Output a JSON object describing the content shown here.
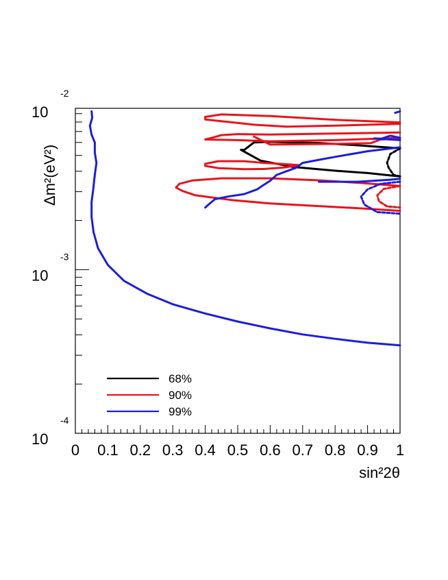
{
  "chart_data": {
    "type": "line",
    "title": "",
    "xlabel": "sin²2θ",
    "ylabel": "Δm²(eV²)",
    "x_axis": {
      "range": [
        0,
        1
      ],
      "tick_labels": [
        "0",
        "0.1",
        "0.2",
        "0.3",
        "0.4",
        "0.5",
        "0.6",
        "0.7",
        "0.8",
        "0.9",
        "1"
      ]
    },
    "y_axis": {
      "scale": "log",
      "range": [
        0.0001,
        0.0097
      ],
      "tick_labels": [
        {
          "base": "10",
          "exp": "-2",
          "value": 0.01
        },
        {
          "base": "10",
          "exp": "-3",
          "value": 0.001
        },
        {
          "base": "10",
          "exp": "-4",
          "value": 0.0001
        }
      ]
    },
    "grid": false,
    "legend": {
      "placement": "bottom-left",
      "entries": [
        {
          "label": "68%",
          "color": "#000000"
        },
        {
          "label": "90%",
          "color": "#e8141c"
        },
        {
          "label": "99%",
          "color": "#1c1ce0"
        }
      ]
    },
    "series": [
      {
        "name": "68%",
        "color": "#000000",
        "contours": [
          {
            "style": "solid",
            "points": [
              [
                1.0,
                0.00552
              ],
              [
                0.86,
                0.00578
              ],
              [
                0.75,
                0.00595
              ],
              [
                0.6,
                0.00605
              ],
              [
                0.55,
                0.006
              ],
              [
                0.52,
                0.0054
              ],
              [
                0.51,
                0.00541
              ],
              [
                0.57,
                0.00465
              ],
              [
                0.67,
                0.00425
              ],
              [
                0.8,
                0.00403
              ],
              [
                0.9,
                0.0039
              ],
              [
                0.97,
                0.00377
              ],
              [
                1.0,
                0.00372
              ]
            ]
          },
          {
            "style": "dashed",
            "points": [
              [
                1.0,
                0.00552
              ],
              [
                0.97,
                0.0051
              ],
              [
                0.96,
                0.0045
              ],
              [
                0.965,
                0.0042
              ],
              [
                0.98,
                0.0038
              ],
              [
                1.0,
                0.00372
              ]
            ]
          }
        ]
      },
      {
        "name": "90%",
        "color": "#e8141c",
        "contours": [
          {
            "style": "solid",
            "points": [
              [
                1.0,
                0.00795
              ],
              [
                0.8,
                0.00825
              ],
              [
                0.6,
                0.0087
              ],
              [
                0.45,
                0.0089
              ],
              [
                0.4,
                0.0086
              ],
              [
                0.4,
                0.0083
              ],
              [
                0.55,
                0.0077
              ],
              [
                0.65,
                0.0075
              ],
              [
                0.8,
                0.0076
              ],
              [
                1.0,
                0.0078
              ]
            ]
          },
          {
            "style": "solid",
            "points": [
              [
                1.0,
                0.0069
              ],
              [
                0.8,
                0.0068
              ],
              [
                0.6,
                0.0067
              ],
              [
                0.5,
                0.00675
              ],
              [
                0.45,
                0.00665
              ],
              [
                0.42,
                0.0064
              ],
              [
                0.4,
                0.00625
              ],
              [
                0.5,
                0.0062
              ],
              [
                0.6,
                0.0061
              ],
              [
                0.8,
                0.0062
              ],
              [
                1.0,
                0.0064
              ]
            ]
          },
          {
            "style": "solid",
            "points": [
              [
                0.55,
                0.00652
              ],
              [
                0.6,
                0.00582
              ],
              [
                0.7,
                0.00585
              ],
              [
                0.8,
                0.00588
              ],
              [
                0.91,
                0.00594
              ],
              [
                0.94,
                0.00625
              ],
              [
                1.0,
                0.00635
              ]
            ]
          },
          {
            "style": "solid",
            "points": [
              [
                0.69,
                0.00436
              ],
              [
                0.64,
                0.00443
              ],
              [
                0.58,
                0.0045
              ],
              [
                0.52,
                0.00461
              ],
              [
                0.44,
                0.00461
              ],
              [
                0.4,
                0.00444
              ],
              [
                0.4,
                0.00431
              ],
              [
                0.44,
                0.00418
              ],
              [
                0.52,
                0.00412
              ],
              [
                0.58,
                0.00413
              ],
              [
                0.64,
                0.00421
              ],
              [
                0.69,
                0.00436
              ]
            ]
          },
          {
            "style": "solid",
            "points": [
              [
                1.0,
                0.00325
              ],
              [
                0.88,
                0.00339
              ],
              [
                0.75,
                0.00352
              ],
              [
                0.6,
                0.00362
              ],
              [
                0.45,
                0.00362
              ],
              [
                0.36,
                0.00351
              ],
              [
                0.32,
                0.00335
              ],
              [
                0.31,
                0.00318
              ],
              [
                0.33,
                0.00303
              ],
              [
                0.37,
                0.00285
              ],
              [
                0.48,
                0.00267
              ],
              [
                0.6,
                0.00254
              ],
              [
                0.75,
                0.00245
              ],
              [
                0.9,
                0.00236
              ],
              [
                1.0,
                0.00229
              ]
            ]
          },
          {
            "style": "dashed",
            "points": [
              [
                1.0,
                0.00325
              ],
              [
                0.95,
                0.00312
              ],
              [
                0.93,
                0.00285
              ],
              [
                0.935,
                0.00262
              ],
              [
                0.96,
                0.00244
              ],
              [
                1.0,
                0.0024
              ]
            ]
          }
        ]
      },
      {
        "name": "99%",
        "color": "#1c1ce0",
        "contours": [
          {
            "style": "solid",
            "points": [
              [
                0.05,
                0.0093
              ],
              [
                0.052,
                0.0085
              ],
              [
                0.045,
                0.0076
              ],
              [
                0.05,
                0.0067
              ],
              [
                0.06,
                0.006
              ],
              [
                0.06,
                0.0052
              ],
              [
                0.065,
                0.0045
              ],
              [
                0.06,
                0.0038
              ],
              [
                0.055,
                0.0031
              ],
              [
                0.05,
                0.0026
              ],
              [
                0.05,
                0.0021
              ],
              [
                0.056,
                0.0017
              ],
              [
                0.07,
                0.00135
              ],
              [
                0.1,
                0.00107
              ],
              [
                0.15,
                0.000855
              ],
              [
                0.22,
                0.000715
              ],
              [
                0.3,
                0.000615
              ],
              [
                0.4,
                0.00054
              ],
              [
                0.5,
                0.000482
              ],
              [
                0.6,
                0.000438
              ],
              [
                0.7,
                0.000402
              ],
              [
                0.8,
                0.000378
              ],
              [
                0.9,
                0.000358
              ],
              [
                1.0,
                0.000345
              ]
            ]
          },
          {
            "style": "solid",
            "points": [
              [
                1.0,
                0.0056
              ],
              [
                0.9,
                0.0053
              ],
              [
                0.8,
                0.0049
              ],
              [
                0.75,
                0.0047
              ],
              [
                0.7,
                0.0045
              ],
              [
                0.68,
                0.0042
              ],
              [
                0.65,
                0.004
              ],
              [
                0.62,
                0.0038
              ],
              [
                0.6,
                0.0035
              ],
              [
                0.58,
                0.0033
              ],
              [
                0.56,
                0.0031
              ],
              [
                0.52,
                0.0029
              ],
              [
                0.47,
                0.0028
              ],
              [
                0.43,
                0.0027
              ],
              [
                0.41,
                0.0025
              ],
              [
                0.4,
                0.0024
              ]
            ]
          },
          {
            "style": "solid",
            "points": [
              [
                1.0,
                0.0064
              ],
              [
                0.97,
                0.0066
              ],
              [
                0.94,
                0.0063
              ],
              [
                0.92,
                0.00635
              ],
              [
                1.0,
                0.0062
              ]
            ]
          },
          {
            "style": "solid",
            "points": [
              [
                1.0,
                0.0093
              ],
              [
                0.985,
                0.0091
              ]
            ]
          },
          {
            "style": "solid",
            "points": [
              [
                1.0,
                0.0036
              ],
              [
                0.97,
                0.00355
              ],
              [
                0.92,
                0.0035
              ],
              [
                0.87,
                0.00345
              ],
              [
                0.81,
                0.00345
              ],
              [
                0.75,
                0.00345
              ]
            ]
          },
          {
            "style": "dashed",
            "points": [
              [
                1.0,
                0.00345
              ],
              [
                0.94,
                0.00335
              ],
              [
                0.9,
                0.0031
              ],
              [
                0.88,
                0.0028
              ],
              [
                0.89,
                0.0025
              ],
              [
                0.93,
                0.00225
              ],
              [
                1.0,
                0.0022
              ]
            ]
          }
        ]
      }
    ]
  }
}
